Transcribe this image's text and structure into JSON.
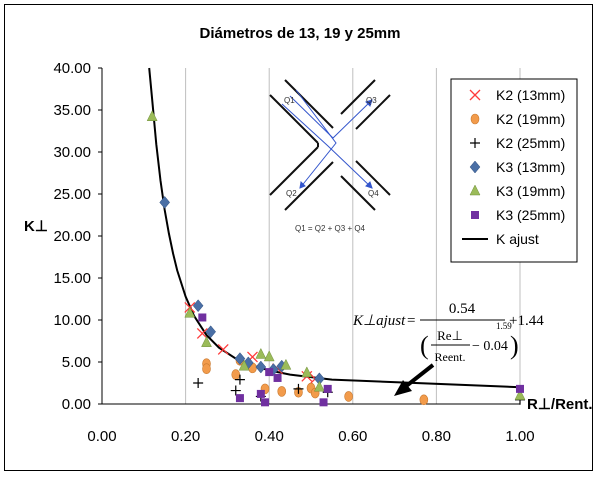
{
  "chart_data": {
    "type": "scatter",
    "title": "Diámetros de 13, 19 y 25mm",
    "xlabel": "R⊥/Rent.",
    "ylabel": "K⊥",
    "xlim": [
      0,
      1
    ],
    "ylim": [
      0,
      40
    ],
    "x_ticks": [
      "0.00",
      "0.20",
      "0.40",
      "0.60",
      "0.80",
      "1.00"
    ],
    "y_ticks": [
      "0.00",
      "5.00",
      "10.00",
      "15.00",
      "20.00",
      "25.00",
      "30.00",
      "35.00",
      "40.00"
    ],
    "grid": "vertical",
    "legend_position": "right",
    "series": [
      {
        "name": "K2 (13mm)",
        "marker": "x",
        "color": "#ff3b3b",
        "points": [
          [
            0.21,
            11.5
          ],
          [
            0.24,
            8.4
          ],
          [
            0.29,
            6.5
          ],
          [
            0.36,
            5.6
          ],
          [
            0.42,
            4.2
          ],
          [
            0.49,
            3.3
          ],
          [
            0.51,
            3.0
          ]
        ]
      },
      {
        "name": "K2 (19mm)",
        "marker": "circle",
        "color": "#f29b4b",
        "points": [
          [
            0.25,
            4.8
          ],
          [
            0.25,
            4.2
          ],
          [
            0.32,
            3.5
          ],
          [
            0.33,
            5.2
          ],
          [
            0.36,
            4.3
          ],
          [
            0.39,
            1.8
          ],
          [
            0.43,
            1.5
          ],
          [
            0.47,
            1.4
          ],
          [
            0.5,
            1.9
          ],
          [
            0.51,
            1.3
          ],
          [
            0.59,
            0.9
          ],
          [
            0.77,
            0.5
          ]
        ]
      },
      {
        "name": "K2 (25mm)",
        "marker": "plus",
        "color": "#000000",
        "points": [
          [
            0.23,
            2.5
          ],
          [
            0.32,
            1.6
          ],
          [
            0.33,
            2.9
          ],
          [
            0.38,
            0.9
          ],
          [
            0.47,
            1.8
          ],
          [
            0.54,
            1.4
          ],
          [
            1.0,
            0.5
          ]
        ]
      },
      {
        "name": "K3 (13mm)",
        "marker": "diamond",
        "color": "#4a6fa5",
        "points": [
          [
            0.15,
            24.0
          ],
          [
            0.23,
            11.7
          ],
          [
            0.26,
            8.6
          ],
          [
            0.33,
            5.4
          ],
          [
            0.35,
            4.9
          ],
          [
            0.38,
            4.4
          ],
          [
            0.41,
            4.1
          ],
          [
            0.43,
            4.5
          ],
          [
            0.52,
            3.0
          ]
        ]
      },
      {
        "name": "K3 (19mm)",
        "marker": "triangle",
        "color": "#9bbb59",
        "points": [
          [
            0.12,
            34.2
          ],
          [
            0.21,
            10.8
          ],
          [
            0.25,
            7.3
          ],
          [
            0.34,
            4.5
          ],
          [
            0.38,
            5.9
          ],
          [
            0.4,
            5.6
          ],
          [
            0.44,
            4.6
          ],
          [
            0.49,
            3.7
          ],
          [
            0.52,
            2.0
          ],
          [
            1.0,
            1.0
          ]
        ]
      },
      {
        "name": "K3 (25mm)",
        "marker": "square",
        "color": "#7030a0",
        "points": [
          [
            0.24,
            10.3
          ],
          [
            0.33,
            0.7
          ],
          [
            0.38,
            1.2
          ],
          [
            0.39,
            0.2
          ],
          [
            0.4,
            3.8
          ],
          [
            0.42,
            3.1
          ],
          [
            0.53,
            0.2
          ],
          [
            0.54,
            1.8
          ],
          [
            1.0,
            1.8
          ]
        ]
      },
      {
        "name": "K ajust",
        "marker": "line",
        "color": "#000000",
        "points": [
          [
            0.113,
            40.0
          ],
          [
            0.12,
            36.2
          ],
          [
            0.13,
            30.9
          ],
          [
            0.14,
            26.6
          ],
          [
            0.15,
            23.1
          ],
          [
            0.16,
            20.3
          ],
          [
            0.17,
            17.9
          ],
          [
            0.18,
            15.9
          ],
          [
            0.2,
            12.8
          ],
          [
            0.22,
            10.5
          ],
          [
            0.25,
            8.2
          ],
          [
            0.28,
            6.7
          ],
          [
            0.32,
            5.4
          ],
          [
            0.36,
            4.6
          ],
          [
            0.4,
            4.0
          ],
          [
            0.45,
            3.5
          ],
          [
            0.5,
            3.2
          ],
          [
            0.55,
            2.9
          ],
          [
            1.0,
            2.0
          ]
        ]
      }
    ],
    "annotations": {
      "formula_lhs": "K⊥ajust",
      "formula_numerator": "0.54",
      "formula_inner_numerator": "Re⊥",
      "formula_inner_denominator": "Reent.",
      "formula_minus": "− 0.04",
      "formula_exponent": "1.59",
      "formula_plus": "+1.44",
      "inset_labels": [
        "Q1",
        "Q2",
        "Q3",
        "Q4"
      ],
      "inset_equation": "Q1 = Q2 + Q3 + Q4"
    }
  },
  "colors": {
    "frame": "#000000",
    "grid": "#bfbfbf",
    "inset_lines": "#3355cc"
  }
}
